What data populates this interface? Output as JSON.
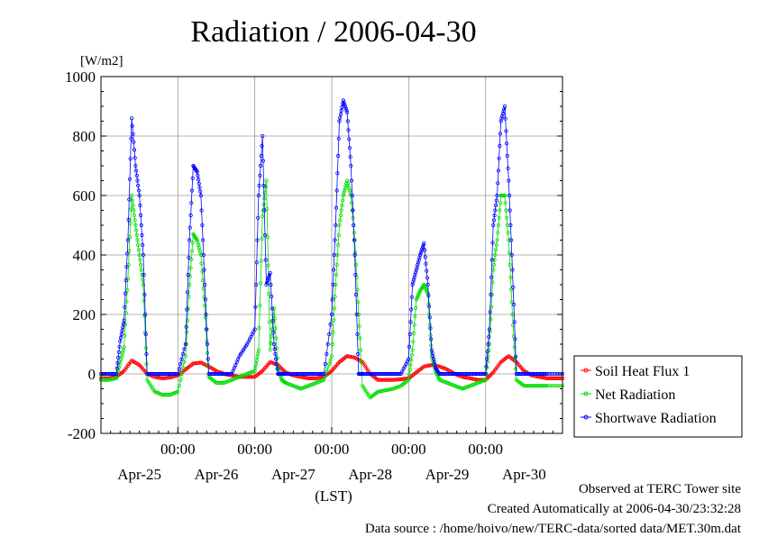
{
  "chart_data": {
    "type": "line",
    "title": "Radiation / 2006-04-30",
    "ylabel": "[W/m2]",
    "xlabel": "(LST)",
    "ylim": [
      -200,
      1000
    ],
    "yticks": [
      -200,
      0,
      200,
      400,
      600,
      800,
      1000
    ],
    "xlim_days": [
      -0.5,
      5.5
    ],
    "x_major_labels": [
      "00:00",
      "00:00",
      "00:00",
      "00:00",
      "00:00"
    ],
    "x_day_labels": [
      "Apr-25",
      "Apr-26",
      "Apr-27",
      "Apr-28",
      "Apr-29",
      "Apr-30"
    ],
    "grid": true,
    "legend_position": "right-bottom",
    "series": [
      {
        "name": "Soil Heat Flux 1",
        "color": "#ff0000",
        "x": [
          -0.5,
          -0.4,
          -0.3,
          -0.2,
          -0.1,
          0.0,
          0.1,
          0.2,
          0.3,
          0.4,
          0.5,
          0.6,
          0.7,
          0.8,
          0.9,
          1.0,
          1.1,
          1.2,
          1.3,
          1.4,
          1.5,
          1.6,
          1.7,
          1.8,
          1.9,
          2.0,
          2.1,
          2.2,
          2.3,
          2.4,
          2.5,
          2.6,
          2.7,
          2.8,
          2.9,
          3.0,
          3.1,
          3.2,
          3.3,
          3.4,
          3.5,
          3.6,
          3.7,
          3.8,
          3.9,
          4.0,
          4.1,
          4.2,
          4.3,
          4.4,
          4.5,
          4.6,
          4.7,
          4.8,
          4.9,
          5.0,
          5.1,
          5.2,
          5.3,
          5.4,
          5.5
        ],
        "values": [
          -15,
          -15,
          -10,
          10,
          45,
          30,
          0,
          -10,
          -15,
          -12,
          -5,
          15,
          35,
          38,
          25,
          10,
          0,
          -5,
          -10,
          -10,
          -10,
          10,
          40,
          30,
          5,
          -5,
          -10,
          -15,
          -15,
          -10,
          10,
          40,
          60,
          55,
          40,
          0,
          -20,
          -20,
          -20,
          -18,
          -15,
          5,
          25,
          30,
          25,
          15,
          0,
          -10,
          -15,
          -20,
          -20,
          5,
          40,
          60,
          40,
          10,
          -5,
          -10,
          -15,
          -15,
          -15
        ]
      },
      {
        "name": "Net Radiation",
        "color": "#00dd00",
        "x": [
          -0.5,
          -0.4,
          -0.3,
          -0.25,
          -0.2,
          -0.15,
          -0.1,
          -0.05,
          0.0,
          0.05,
          0.1,
          0.2,
          0.3,
          0.4,
          0.5,
          0.6,
          0.65,
          0.7,
          0.75,
          0.8,
          0.85,
          0.9,
          1.0,
          1.1,
          1.2,
          1.3,
          1.4,
          1.5,
          1.55,
          1.6,
          1.65,
          1.7,
          1.75,
          1.8,
          1.85,
          1.9,
          2.0,
          2.1,
          2.2,
          2.3,
          2.4,
          2.5,
          2.55,
          2.6,
          2.65,
          2.7,
          2.75,
          2.8,
          2.85,
          2.9,
          3.0,
          3.1,
          3.2,
          3.3,
          3.4,
          3.5,
          3.55,
          3.6,
          3.65,
          3.7,
          3.75,
          3.8,
          3.85,
          3.9,
          4.0,
          4.1,
          4.2,
          4.3,
          4.4,
          4.5,
          4.55,
          4.6,
          4.65,
          4.7,
          4.75,
          4.8,
          4.85,
          4.9,
          5.0,
          5.1,
          5.2,
          5.3,
          5.5
        ],
        "values": [
          -20,
          -20,
          -15,
          40,
          90,
          320,
          600,
          500,
          400,
          300,
          -20,
          -60,
          -70,
          -70,
          -60,
          60,
          300,
          470,
          450,
          400,
          230,
          -10,
          -30,
          -30,
          -20,
          -10,
          0,
          10,
          80,
          530,
          650,
          80,
          220,
          20,
          -20,
          -30,
          -40,
          -50,
          -40,
          -30,
          -20,
          60,
          300,
          500,
          600,
          650,
          600,
          450,
          200,
          -40,
          -80,
          -60,
          -55,
          -50,
          -40,
          -20,
          80,
          250,
          280,
          300,
          270,
          60,
          10,
          -20,
          -30,
          -40,
          -50,
          -40,
          -30,
          -20,
          100,
          350,
          450,
          600,
          600,
          450,
          200,
          -20,
          -40,
          -40,
          -40,
          -40,
          -40
        ]
      },
      {
        "name": "Shortwave Radiation",
        "color": "#0000ff",
        "x": [
          -0.5,
          -0.4,
          -0.3,
          -0.25,
          -0.2,
          -0.15,
          -0.1,
          -0.05,
          0.0,
          0.05,
          0.1,
          0.2,
          0.3,
          0.4,
          0.5,
          0.6,
          0.65,
          0.7,
          0.75,
          0.8,
          0.85,
          0.9,
          1.0,
          1.1,
          1.2,
          1.3,
          1.4,
          1.5,
          1.55,
          1.6,
          1.65,
          1.7,
          1.75,
          1.8,
          1.85,
          1.9,
          2.0,
          2.1,
          2.2,
          2.3,
          2.4,
          2.5,
          2.55,
          2.6,
          2.65,
          2.7,
          2.75,
          2.8,
          2.85,
          2.9,
          3.0,
          3.1,
          3.2,
          3.3,
          3.4,
          3.5,
          3.55,
          3.6,
          3.65,
          3.7,
          3.75,
          3.8,
          3.85,
          3.9,
          4.0,
          4.1,
          4.2,
          4.3,
          4.4,
          4.5,
          4.55,
          4.6,
          4.65,
          4.7,
          4.75,
          4.8,
          4.85,
          4.9,
          5.0,
          5.1,
          5.2,
          5.3,
          5.5
        ],
        "values": [
          0,
          0,
          0,
          110,
          180,
          450,
          860,
          700,
          600,
          400,
          0,
          0,
          0,
          0,
          0,
          100,
          450,
          700,
          680,
          600,
          300,
          0,
          0,
          0,
          0,
          60,
          100,
          150,
          600,
          800,
          300,
          340,
          100,
          0,
          0,
          0,
          0,
          0,
          0,
          0,
          0,
          200,
          500,
          850,
          920,
          880,
          700,
          400,
          0,
          0,
          0,
          0,
          0,
          0,
          0,
          50,
          300,
          350,
          400,
          440,
          300,
          80,
          20,
          0,
          0,
          0,
          0,
          0,
          0,
          0,
          150,
          500,
          600,
          850,
          900,
          650,
          350,
          0,
          0,
          0,
          0,
          0,
          0
        ]
      }
    ]
  },
  "footer": {
    "observed": "Observed at TERC Tower site",
    "created": "Created Automatically at 2006-04-30/23:32:28",
    "source": "Data source : /home/hoivo/new/TERC-data/sorted  data/MET.30m.dat"
  }
}
